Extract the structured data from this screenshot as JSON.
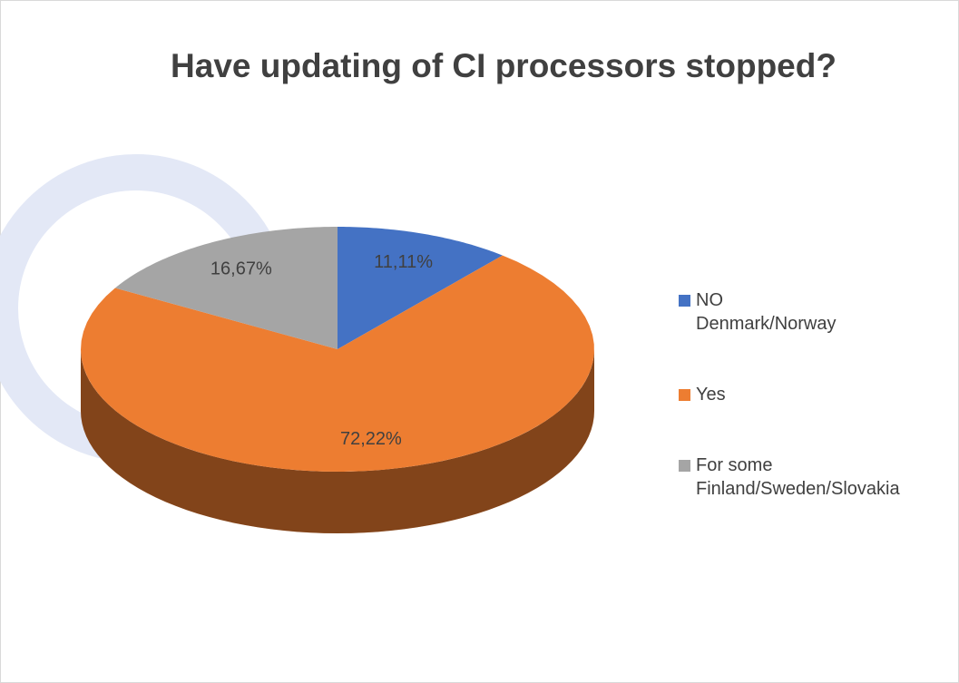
{
  "chart_data": {
    "type": "pie",
    "title": "Have updating of CI processors stopped?",
    "categories": [
      "NO Denmark/Norway",
      "Yes",
      "For some Finland/Sweden/Slovakia"
    ],
    "values": [
      11.11,
      72.22,
      16.67
    ],
    "value_labels": [
      "11,11%",
      "72,22%",
      "16,67%"
    ],
    "colors": [
      "#4472c4",
      "#ed7d31",
      "#a5a5a5"
    ],
    "legend": "right"
  }
}
